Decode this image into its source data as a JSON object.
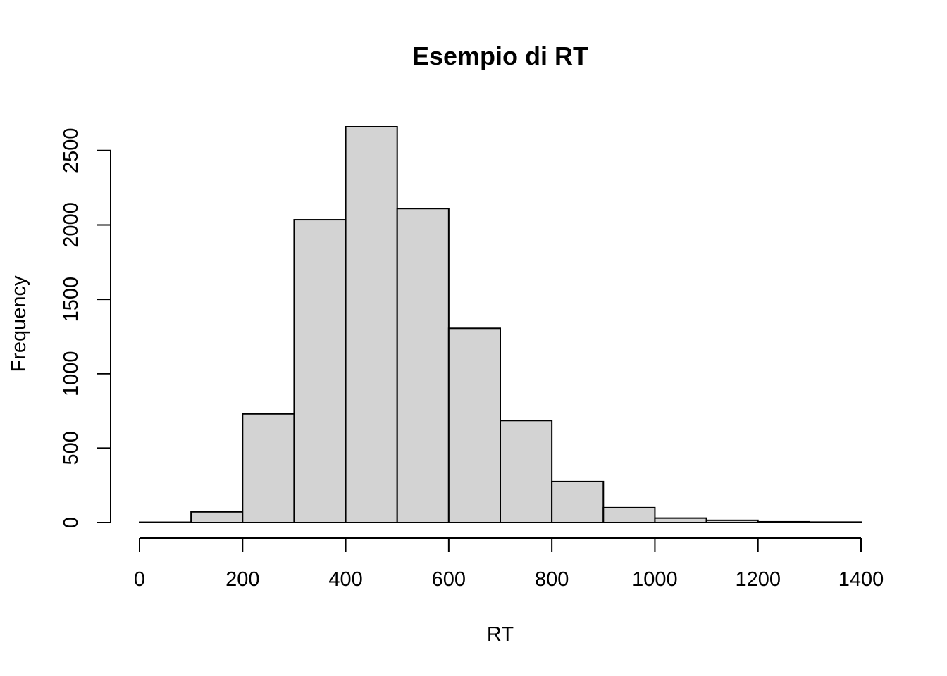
{
  "chart_data": {
    "type": "bar",
    "title": "Esempio di RT",
    "xlabel": "RT",
    "ylabel": "Frequency",
    "bin_edges": [
      0,
      100,
      200,
      300,
      400,
      500,
      600,
      700,
      800,
      900,
      1000,
      1100,
      1200,
      1300,
      1400
    ],
    "values": [
      2,
      72,
      730,
      2035,
      2660,
      2110,
      1305,
      685,
      275,
      100,
      30,
      15,
      5,
      3
    ],
    "xlim": [
      0,
      1400
    ],
    "ylim": [
      0,
      2660
    ],
    "x_ticks": [
      0,
      200,
      400,
      600,
      800,
      1000,
      1200,
      1400
    ],
    "y_ticks": [
      0,
      500,
      1000,
      1500,
      2000,
      2500
    ],
    "bar_color": "#d3d3d3",
    "grid": false,
    "legend": false
  }
}
